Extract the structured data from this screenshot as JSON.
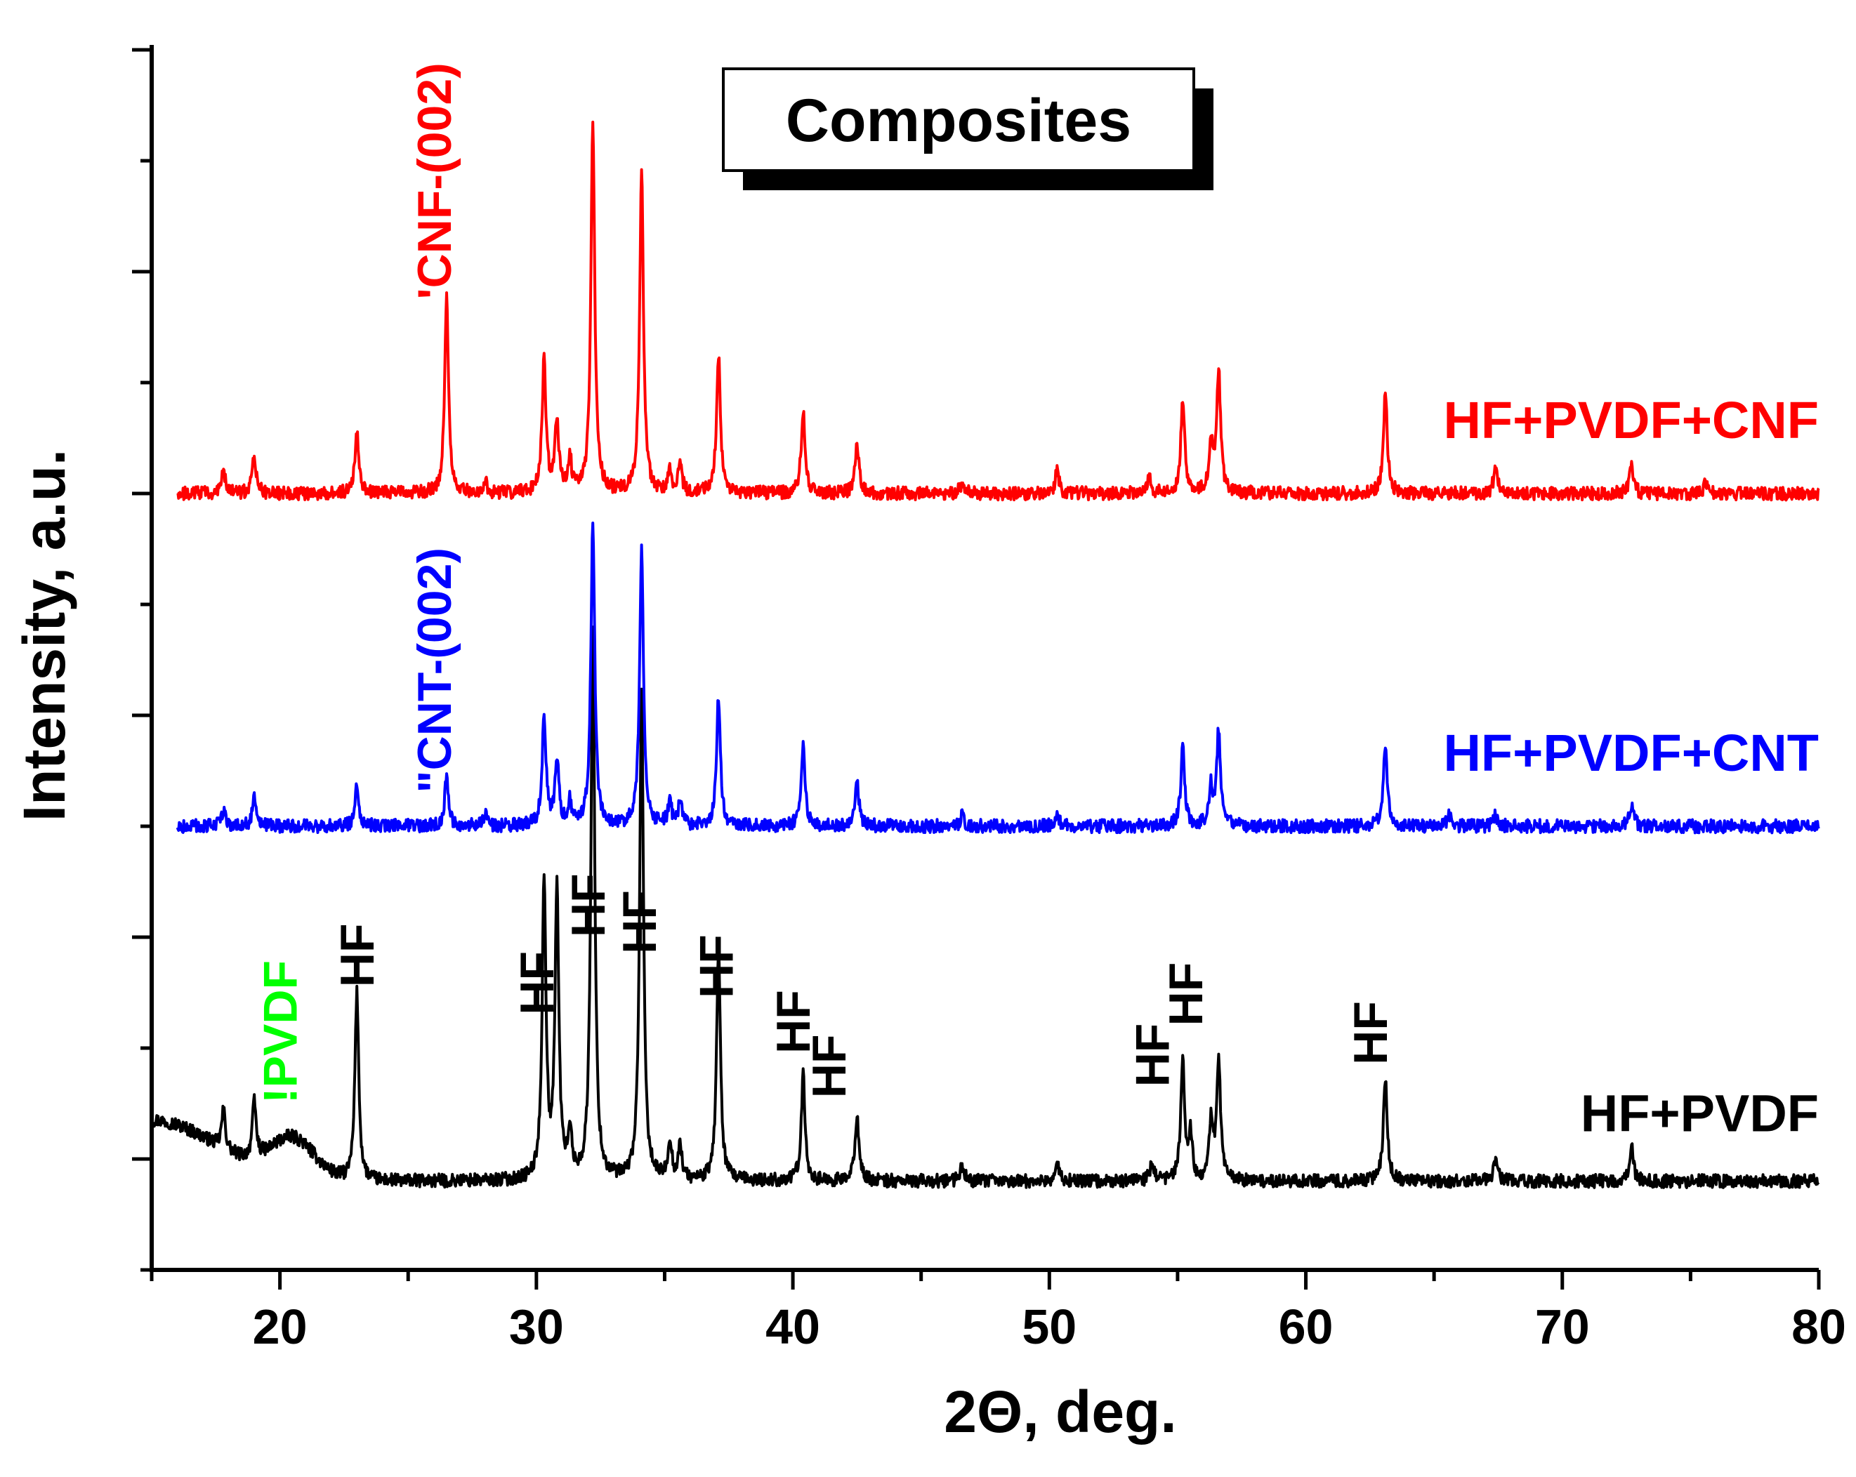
{
  "chart_data": {
    "type": "line",
    "title": "Composites",
    "xlabel": "2Θ, deg.",
    "ylabel": "Intensity, a.u.",
    "xlim": [
      15,
      80
    ],
    "ylim": [
      0,
      11
    ],
    "x_ticks": [
      20,
      30,
      40,
      50,
      60,
      70,
      80
    ],
    "x_tick_labels": [
      "20",
      "30",
      "40",
      "50",
      "60",
      "70",
      "80"
    ],
    "y_ticks": [
      0,
      1,
      2,
      3,
      4,
      5,
      6,
      7,
      8,
      9,
      10,
      11
    ],
    "x_range": [
      15.0,
      80.0
    ],
    "noise_amplitude": 0.06,
    "series": [
      {
        "name": "HF+PVDF",
        "color": "#000000",
        "x_start": 15.0,
        "baseline": 0.8,
        "background": [
          {
            "center": 15.0,
            "height": 0.55,
            "width": 3.5
          },
          {
            "center": 20.5,
            "height": 0.35,
            "width": 1.2
          }
        ],
        "peaks": [
          {
            "pos": 17.8,
            "height": 0.35
          },
          {
            "pos": 19.0,
            "height": 0.5
          },
          {
            "pos": 23.0,
            "height": 1.7
          },
          {
            "pos": 30.3,
            "height": 2.7
          },
          {
            "pos": 30.8,
            "height": 2.6
          },
          {
            "pos": 31.3,
            "height": 0.4
          },
          {
            "pos": 32.2,
            "height": 5.0
          },
          {
            "pos": 34.1,
            "height": 4.4
          },
          {
            "pos": 35.2,
            "height": 0.35
          },
          {
            "pos": 35.6,
            "height": 0.3
          },
          {
            "pos": 37.1,
            "height": 2.1
          },
          {
            "pos": 40.4,
            "height": 0.95
          },
          {
            "pos": 42.5,
            "height": 0.6
          },
          {
            "pos": 46.6,
            "height": 0.15
          },
          {
            "pos": 50.3,
            "height": 0.15
          },
          {
            "pos": 54.0,
            "height": 0.15
          },
          {
            "pos": 55.2,
            "height": 1.05
          },
          {
            "pos": 55.5,
            "height": 0.4
          },
          {
            "pos": 56.3,
            "height": 0.5
          },
          {
            "pos": 56.6,
            "height": 1.1
          },
          {
            "pos": 63.1,
            "height": 0.95
          },
          {
            "pos": 67.4,
            "height": 0.2
          },
          {
            "pos": 72.7,
            "height": 0.3
          }
        ],
        "label": "HF+PVDF",
        "label_color": "#000000"
      },
      {
        "name": "HF+PVDF+CNT",
        "color": "#0000ff",
        "x_start": 16.0,
        "baseline": 4.0,
        "background": [],
        "peaks": [
          {
            "pos": 17.8,
            "height": 0.15
          },
          {
            "pos": 19.0,
            "height": 0.25
          },
          {
            "pos": 23.0,
            "height": 0.35
          },
          {
            "pos": 26.5,
            "height": 0.45
          },
          {
            "pos": 28.0,
            "height": 0.1
          },
          {
            "pos": 30.3,
            "height": 1.0
          },
          {
            "pos": 30.8,
            "height": 0.6
          },
          {
            "pos": 31.3,
            "height": 0.2
          },
          {
            "pos": 32.2,
            "height": 2.75
          },
          {
            "pos": 34.1,
            "height": 2.5
          },
          {
            "pos": 35.2,
            "height": 0.2
          },
          {
            "pos": 35.6,
            "height": 0.2
          },
          {
            "pos": 37.1,
            "height": 1.15
          },
          {
            "pos": 40.4,
            "height": 0.75
          },
          {
            "pos": 42.5,
            "height": 0.4
          },
          {
            "pos": 46.6,
            "height": 0.1
          },
          {
            "pos": 50.3,
            "height": 0.1
          },
          {
            "pos": 55.2,
            "height": 0.7
          },
          {
            "pos": 56.3,
            "height": 0.35
          },
          {
            "pos": 56.6,
            "height": 0.85
          },
          {
            "pos": 63.1,
            "height": 0.75
          },
          {
            "pos": 65.6,
            "height": 0.1
          },
          {
            "pos": 67.4,
            "height": 0.1
          },
          {
            "pos": 72.7,
            "height": 0.2
          }
        ],
        "label": "HF+PVDF+CNT",
        "label_color": "#0000ff"
      },
      {
        "name": "HF+PVDF+CNF",
        "color": "#ff0000",
        "x_start": 16.0,
        "baseline": 7.0,
        "background": [],
        "peaks": [
          {
            "pos": 17.8,
            "height": 0.2
          },
          {
            "pos": 19.0,
            "height": 0.35
          },
          {
            "pos": 23.0,
            "height": 0.55
          },
          {
            "pos": 26.5,
            "height": 1.75
          },
          {
            "pos": 28.0,
            "height": 0.1
          },
          {
            "pos": 30.3,
            "height": 1.2
          },
          {
            "pos": 30.8,
            "height": 0.65
          },
          {
            "pos": 31.3,
            "height": 0.3
          },
          {
            "pos": 32.2,
            "height": 3.35
          },
          {
            "pos": 34.1,
            "height": 2.9
          },
          {
            "pos": 35.2,
            "height": 0.2
          },
          {
            "pos": 35.6,
            "height": 0.25
          },
          {
            "pos": 37.1,
            "height": 1.25
          },
          {
            "pos": 40.4,
            "height": 0.75
          },
          {
            "pos": 42.5,
            "height": 0.45
          },
          {
            "pos": 46.6,
            "height": 0.1
          },
          {
            "pos": 50.3,
            "height": 0.2
          },
          {
            "pos": 53.9,
            "height": 0.15
          },
          {
            "pos": 55.2,
            "height": 0.85
          },
          {
            "pos": 56.3,
            "height": 0.45
          },
          {
            "pos": 56.6,
            "height": 1.1
          },
          {
            "pos": 63.1,
            "height": 0.9
          },
          {
            "pos": 67.4,
            "height": 0.25
          },
          {
            "pos": 72.7,
            "height": 0.25
          },
          {
            "pos": 75.6,
            "height": 0.1
          }
        ],
        "label": "HF+PVDF+CNF",
        "label_color": "#ff0000"
      }
    ],
    "annotations": [
      {
        "text": "HF",
        "x": 23.0,
        "y": 2.55,
        "color": "#000000"
      },
      {
        "text": "HF",
        "x": 30.0,
        "y": 2.3,
        "color": "#000000"
      },
      {
        "text": "HF",
        "x": 32.0,
        "y": 3.0,
        "color": "#000000"
      },
      {
        "text": "HF",
        "x": 34.0,
        "y": 2.85,
        "color": "#000000"
      },
      {
        "text": "HF",
        "x": 37.0,
        "y": 2.45,
        "color": "#000000"
      },
      {
        "text": "HF",
        "x": 40.0,
        "y": 1.95,
        "color": "#000000"
      },
      {
        "text": "HF",
        "x": 41.4,
        "y": 1.55,
        "color": "#000000"
      },
      {
        "text": "HF",
        "x": 54.0,
        "y": 1.65,
        "color": "#000000"
      },
      {
        "text": "HF",
        "x": 55.3,
        "y": 2.2,
        "color": "#000000"
      },
      {
        "text": "HF",
        "x": 62.5,
        "y": 1.85,
        "color": "#000000"
      },
      {
        "text": "!PVDF",
        "x": 20.0,
        "y": 1.5,
        "color": "#00ff00"
      },
      {
        "text": "\"CNT-(002)",
        "x": 26.0,
        "y": 4.3,
        "color": "#0000ff"
      },
      {
        "text": "'CNF-(002)",
        "x": 26.0,
        "y": 8.75,
        "color": "#ff0000"
      }
    ]
  }
}
